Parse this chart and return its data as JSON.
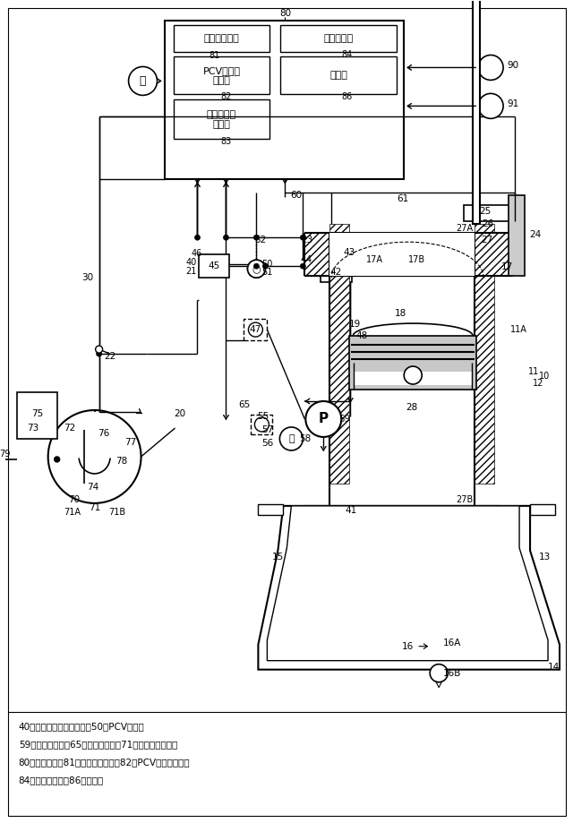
{
  "legend_lines": [
    "40：ブローバイガス通路、50：PCVバルブ",
    "59：負圧ポンプ、65：負圧導入路、71：マスターバック",
    "80：制御装置、81：ポンプ制御部、82：PCVバルブ制御部",
    "84：温度算出部、86：実行部"
  ],
  "font": "IPAGothic"
}
